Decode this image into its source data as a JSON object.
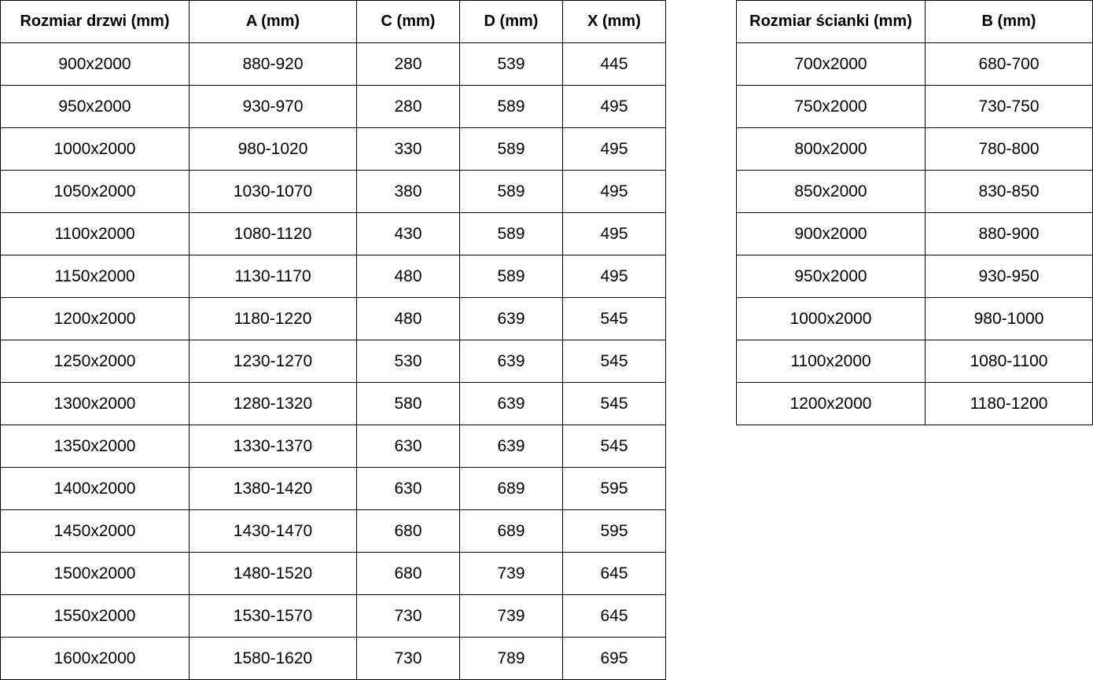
{
  "doors_table": {
    "headers": [
      "Rozmiar drzwi (mm)",
      "A (mm)",
      "C (mm)",
      "D (mm)",
      "X (mm)"
    ],
    "rows": [
      [
        "900x2000",
        "880-920",
        "280",
        "539",
        "445"
      ],
      [
        "950x2000",
        "930-970",
        "280",
        "589",
        "495"
      ],
      [
        "1000x2000",
        "980-1020",
        "330",
        "589",
        "495"
      ],
      [
        "1050x2000",
        "1030-1070",
        "380",
        "589",
        "495"
      ],
      [
        "1100x2000",
        "1080-1120",
        "430",
        "589",
        "495"
      ],
      [
        "1150x2000",
        "1130-1170",
        "480",
        "589",
        "495"
      ],
      [
        "1200x2000",
        "1180-1220",
        "480",
        "639",
        "545"
      ],
      [
        "1250x2000",
        "1230-1270",
        "530",
        "639",
        "545"
      ],
      [
        "1300x2000",
        "1280-1320",
        "580",
        "639",
        "545"
      ],
      [
        "1350x2000",
        "1330-1370",
        "630",
        "639",
        "545"
      ],
      [
        "1400x2000",
        "1380-1420",
        "630",
        "689",
        "595"
      ],
      [
        "1450x2000",
        "1430-1470",
        "680",
        "689",
        "595"
      ],
      [
        "1500x2000",
        "1480-1520",
        "680",
        "739",
        "645"
      ],
      [
        "1550x2000",
        "1530-1570",
        "730",
        "739",
        "645"
      ],
      [
        "1600x2000",
        "1580-1620",
        "730",
        "789",
        "695"
      ]
    ]
  },
  "wall_table": {
    "headers": [
      "Rozmiar ścianki (mm)",
      "B (mm)"
    ],
    "rows": [
      [
        "700x2000",
        "680-700"
      ],
      [
        "750x2000",
        "730-750"
      ],
      [
        "800x2000",
        "780-800"
      ],
      [
        "850x2000",
        "830-850"
      ],
      [
        "900x2000",
        "880-900"
      ],
      [
        "950x2000",
        "930-950"
      ],
      [
        "1000x2000",
        "980-1000"
      ],
      [
        "1100x2000",
        "1080-1100"
      ],
      [
        "1200x2000",
        "1180-1200"
      ]
    ]
  }
}
